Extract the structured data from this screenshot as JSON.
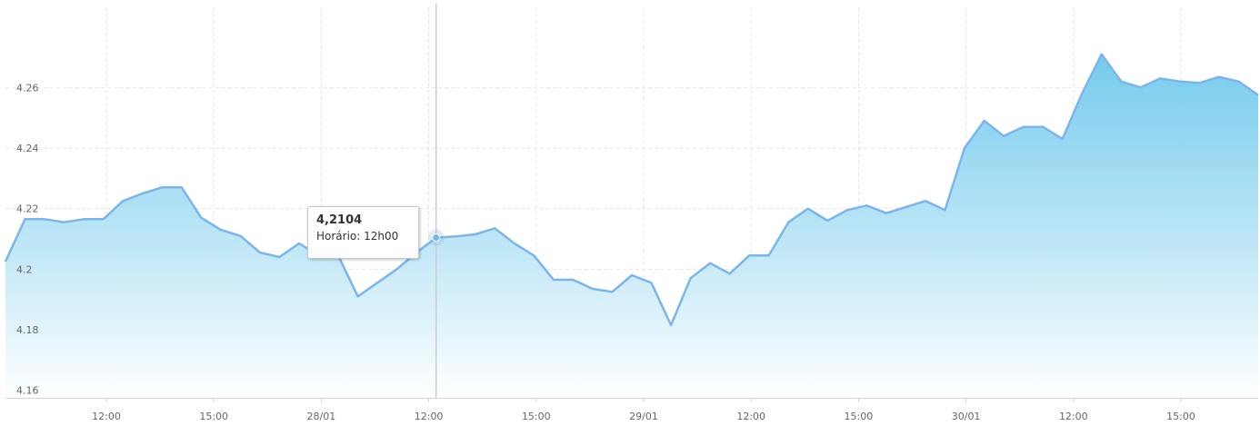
{
  "chart_data": {
    "type": "area",
    "x_ticks": [
      "12:00",
      "15:00",
      "28/01",
      "12:00",
      "15:00",
      "29/01",
      "12:00",
      "15:00",
      "30/01",
      "12:00",
      "15:00"
    ],
    "y_ticks": [
      "4.16",
      "4.18",
      "4.2",
      "4.22",
      "4.24",
      "4.26"
    ],
    "ylim": [
      4.1575,
      4.2865
    ],
    "grid": true,
    "series": [
      {
        "values": [
          4.2025,
          4.2165,
          4.2165,
          4.2155,
          4.2165,
          4.2165,
          4.2225,
          4.225,
          4.227,
          4.227,
          4.217,
          4.213,
          4.211,
          4.2055,
          4.204,
          4.2085,
          4.2045,
          4.2045,
          4.191,
          4.1955,
          4.2,
          4.2055,
          4.2104,
          4.2108,
          4.2115,
          4.2135,
          4.2085,
          4.2045,
          4.1965,
          4.1965,
          4.1935,
          4.1925,
          4.198,
          4.1955,
          4.1815,
          4.197,
          4.202,
          4.1985,
          4.2045,
          4.2045,
          4.2155,
          4.22,
          4.216,
          4.2195,
          4.221,
          4.2185,
          4.2205,
          4.2225,
          4.2195,
          4.24,
          4.249,
          4.244,
          4.247,
          4.247,
          4.243,
          4.258,
          4.271,
          4.262,
          4.26,
          4.263,
          4.262,
          4.2615,
          4.2635,
          4.262,
          4.2575
        ]
      }
    ],
    "tooltip": {
      "value": "4,2104",
      "time_label": "Horário: 12h00",
      "point_index": 22
    },
    "colors": {
      "line": "#7cb5ec",
      "area_top": "#6ec8ec",
      "area_bottom": "#ffffff",
      "grid": "#e6e6e6",
      "crosshair": "#cccccc"
    }
  }
}
